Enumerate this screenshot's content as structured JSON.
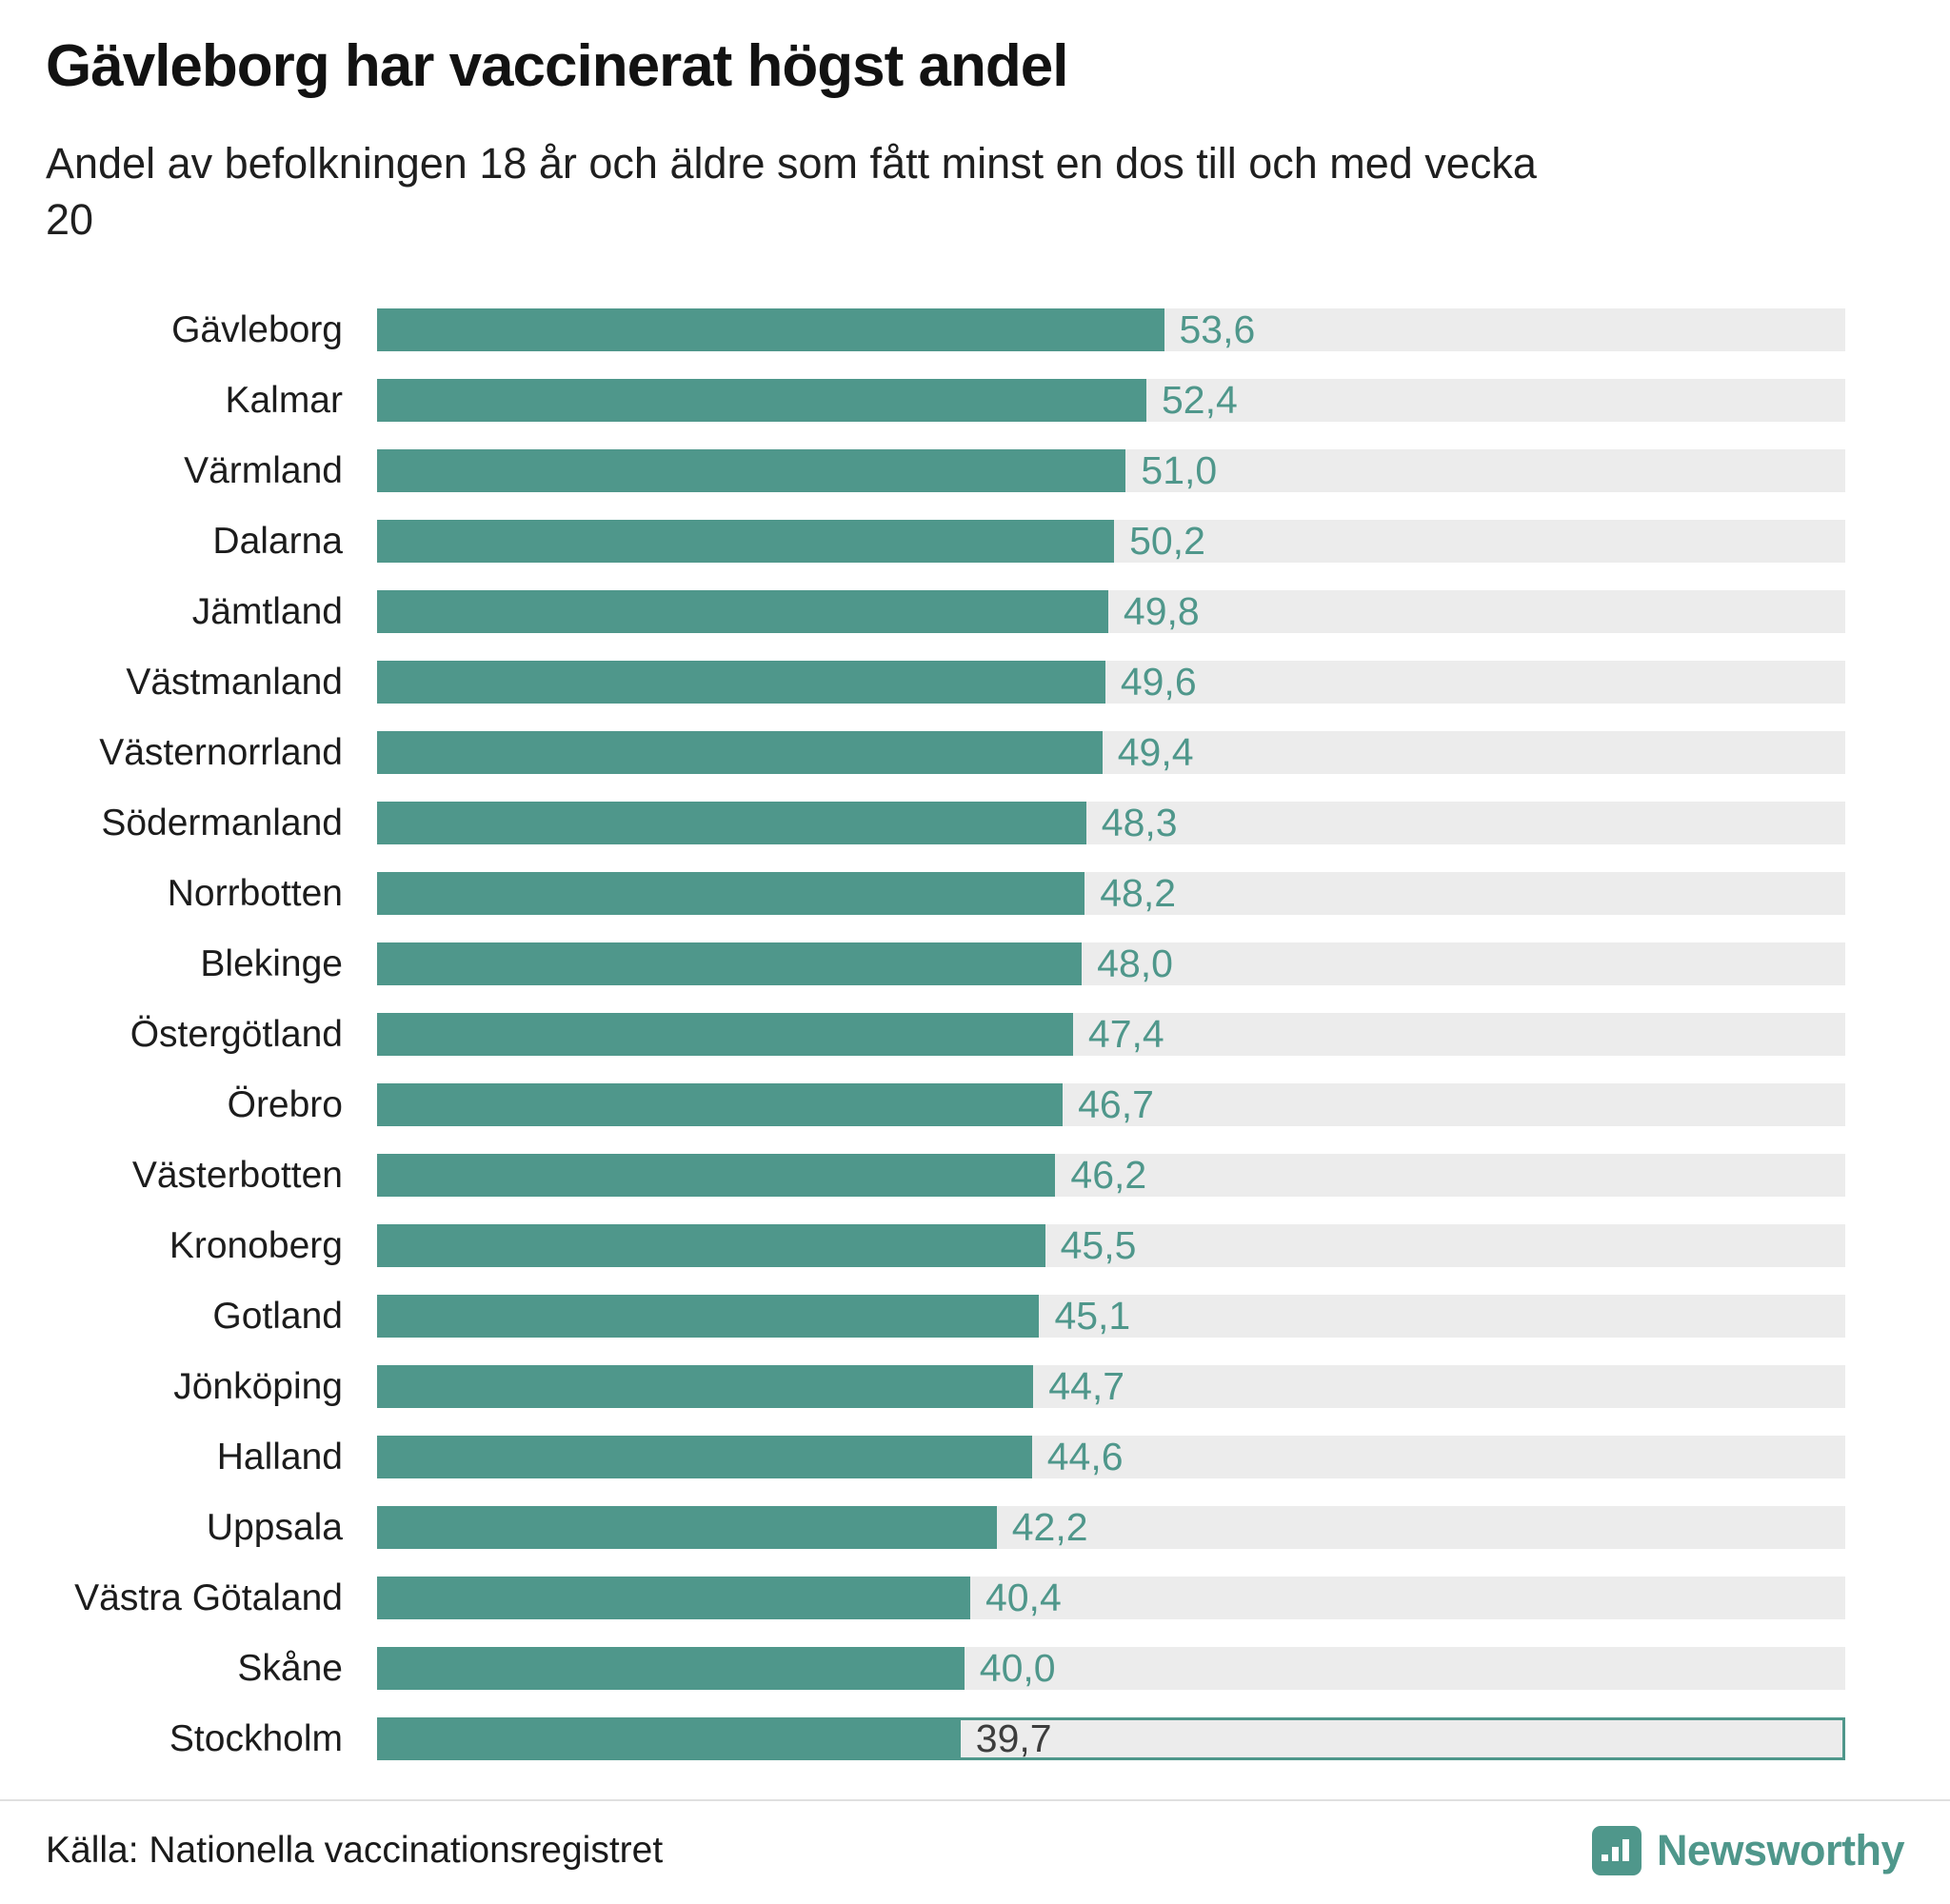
{
  "header": {
    "title": "Gävleborg har vaccinerat högst andel",
    "subtitle": "Andel av befolkningen 18 år och äldre som fått minst en dos till och med vecka 20"
  },
  "footer": {
    "source": "Källa: Nationella vaccinationsregistret",
    "brand_name": "Newsworthy"
  },
  "colors": {
    "bar": "#4f978b",
    "track": "#ececec",
    "value_label": "#4f978b",
    "highlight_outline": "#4f978b",
    "highlight_value_label": "#3d3d3d"
  },
  "chart_data": {
    "type": "bar",
    "orientation": "horizontal",
    "title": "Gävleborg har vaccinerat högst andel",
    "subtitle": "Andel av befolkningen 18 år och äldre som fått minst en dos till och med vecka 20",
    "xlabel": "",
    "ylabel": "",
    "xlim": [
      0,
      100
    ],
    "unit": "percent",
    "grid": false,
    "legend": false,
    "categories": [
      "Gävleborg",
      "Kalmar",
      "Värmland",
      "Dalarna",
      "Jämtland",
      "Västmanland",
      "Västernorrland",
      "Södermanland",
      "Norrbotten",
      "Blekinge",
      "Östergötland",
      "Örebro",
      "Västerbotten",
      "Kronoberg",
      "Gotland",
      "Jönköping",
      "Halland",
      "Uppsala",
      "Västra Götaland",
      "Skåne",
      "Stockholm"
    ],
    "values": [
      53.6,
      52.4,
      51.0,
      50.2,
      49.8,
      49.6,
      49.4,
      48.3,
      48.2,
      48.0,
      47.4,
      46.7,
      46.2,
      45.5,
      45.1,
      44.7,
      44.6,
      42.2,
      40.4,
      40.0,
      39.7
    ],
    "value_labels": [
      "53,6",
      "52,4",
      "51,0",
      "50,2",
      "49,8",
      "49,6",
      "49,4",
      "48,3",
      "48,2",
      "48,0",
      "47,4",
      "46,7",
      "46,2",
      "45,5",
      "45,1",
      "44,7",
      "44,6",
      "42,2",
      "40,4",
      "40,0",
      "39,7"
    ],
    "highlighted_category": "Stockholm"
  }
}
